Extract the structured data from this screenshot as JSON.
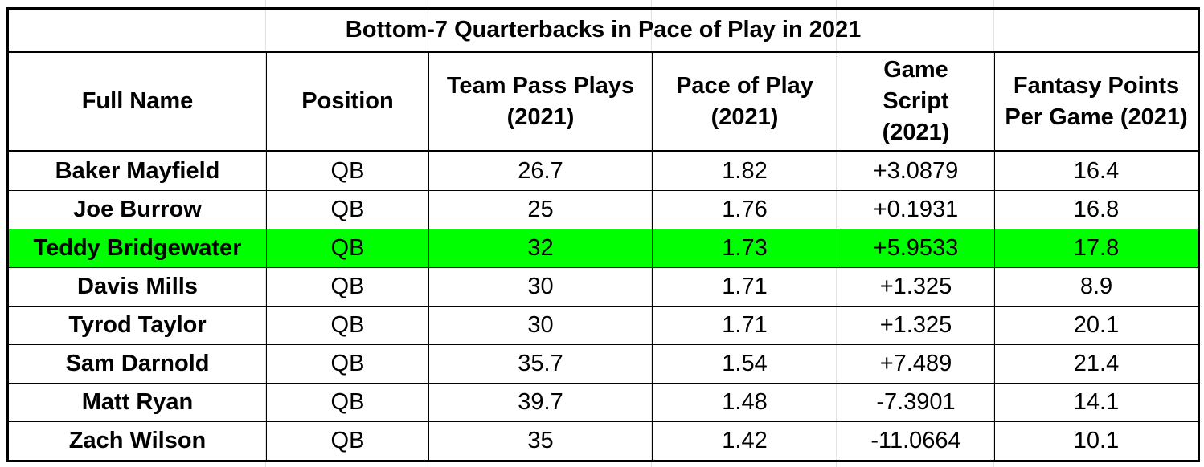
{
  "chart_data": {
    "type": "table",
    "title": "Bottom-7 Quarterbacks in Pace of Play in 2021",
    "columns": [
      "Full Name",
      "Position",
      "Team Pass Plays (2021)",
      "Pace of Play (2021)",
      "Game Script (2021)",
      "Fantasy Points Per Game (2021)"
    ],
    "rows": [
      [
        "Baker Mayfield",
        "QB",
        "26.7",
        "1.82",
        "+3.0879",
        "16.4"
      ],
      [
        "Joe Burrow",
        "QB",
        "25",
        "1.76",
        "+0.1931",
        "16.8"
      ],
      [
        "Teddy Bridgewater",
        "QB",
        "32",
        "1.73",
        "+5.9533",
        "17.8"
      ],
      [
        "Davis Mills",
        "QB",
        "30",
        "1.71",
        "+1.325",
        "8.9"
      ],
      [
        "Tyrod Taylor",
        "QB",
        "30",
        "1.71",
        "+1.325",
        "20.1"
      ],
      [
        "Sam Darnold",
        "QB",
        "35.7",
        "1.54",
        "+7.489",
        "21.4"
      ],
      [
        "Matt Ryan",
        "QB",
        "39.7",
        "1.48",
        "-7.3901",
        "14.1"
      ],
      [
        "Zach Wilson",
        "QB",
        "35",
        "1.42",
        "-11.0664",
        "10.1"
      ]
    ],
    "highlighted_row": "Teddy Bridgewater",
    "highlight_color": "#00ff00"
  }
}
